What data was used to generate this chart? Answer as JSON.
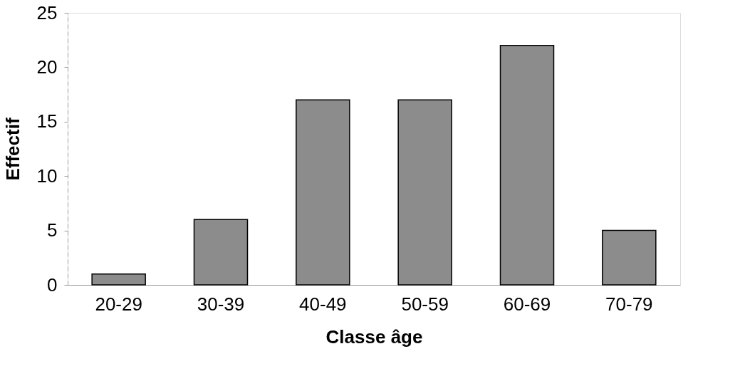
{
  "chart_data": {
    "type": "bar",
    "xlabel": "Classe âge",
    "ylabel": "Effectif",
    "categories": [
      "20-29",
      "30-39",
      "40-49",
      "50-59",
      "60-69",
      "70-79"
    ],
    "values": [
      1,
      6,
      17,
      17,
      22,
      5
    ],
    "color": "#8c8c8c",
    "ylim": [
      0,
      25
    ],
    "yticks": [
      0,
      5,
      10,
      15,
      20,
      25
    ],
    "grid": false
  }
}
